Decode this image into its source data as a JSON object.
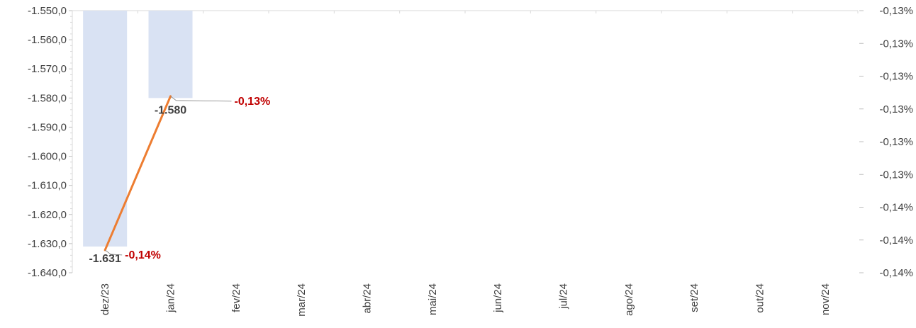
{
  "chart_data": {
    "type": "bar+line",
    "categories": [
      "dez/23",
      "jan/24",
      "fev/24",
      "mar/24",
      "abr/24",
      "mai/24",
      "jun/24",
      "jul/24",
      "ago/24",
      "set/24",
      "out/24",
      "nov/24"
    ],
    "series": [
      {
        "type": "bar",
        "axis": "left",
        "values": [
          -1631,
          -1580,
          null,
          null,
          null,
          null,
          null,
          null,
          null,
          null,
          null,
          null
        ],
        "labels": [
          "-1.631",
          "-1.580"
        ],
        "color": "#d9e2f3"
      },
      {
        "type": "line",
        "axis": "right",
        "values": [
          -0.1405,
          -0.1317,
          null,
          null,
          null,
          null,
          null,
          null,
          null,
          null,
          null,
          null
        ],
        "labels": [
          "-0,14%",
          "-0,13%"
        ],
        "color": "#ed7d31",
        "label_color": "#c00000"
      }
    ],
    "left_axis": {
      "ylim": [
        -1640,
        -1550
      ],
      "ticks": [
        "-1.550,0",
        "-1.560,0",
        "-1.570,0",
        "-1.580,0",
        "-1.590,0",
        "-1.600,0",
        "-1.610,0",
        "-1.620,0",
        "-1.630,0",
        "-1.640,0"
      ]
    },
    "right_axis": {
      "ylim": [
        -0.1418,
        -0.1268
      ],
      "ticks": [
        "-0,13%",
        "-0,13%",
        "-0,13%",
        "-0,13%",
        "-0,13%",
        "-0,13%",
        "-0,14%",
        "-0,14%",
        "-0,14%"
      ]
    },
    "grid": false,
    "legend": "none"
  }
}
